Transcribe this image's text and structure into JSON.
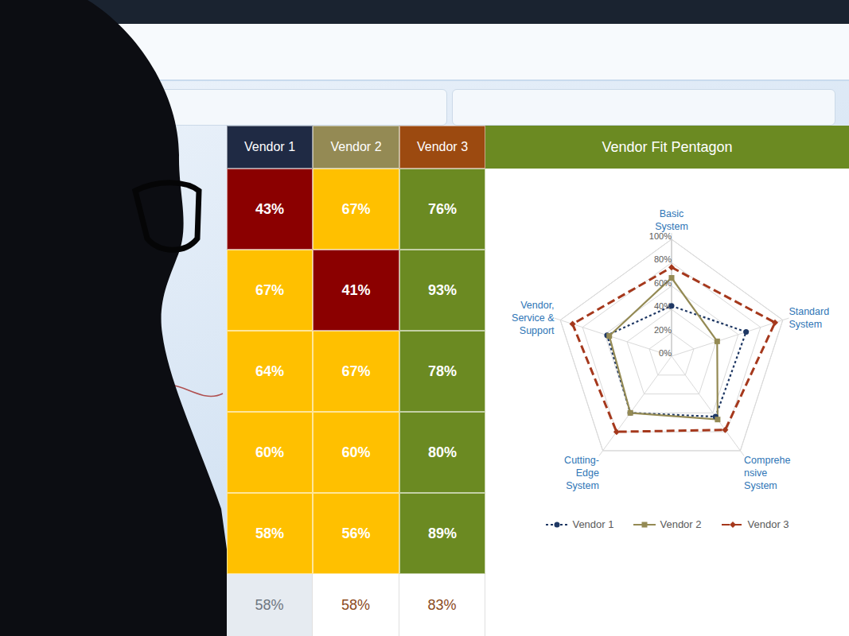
{
  "table": {
    "columns": [
      {
        "label": "Vendor 1",
        "color": "#1f2a44"
      },
      {
        "label": "Vendor 2",
        "color": "#948a54"
      },
      {
        "label": "Vendor 3",
        "color": "#9c4a10"
      }
    ],
    "rows": [
      [
        "43%",
        "67%",
        "76%"
      ],
      [
        "67%",
        "41%",
        "93%"
      ],
      [
        "64%",
        "67%",
        "78%"
      ],
      [
        "60%",
        "60%",
        "80%"
      ],
      [
        "58%",
        "56%",
        "89%"
      ]
    ],
    "cell_colors": [
      [
        "#8b0000",
        "#ffc000",
        "#6b8a22"
      ],
      [
        "#ffc000",
        "#8b0000",
        "#6b8a22"
      ],
      [
        "#ffc000",
        "#ffc000",
        "#6b8a22"
      ],
      [
        "#ffc000",
        "#ffc000",
        "#6b8a22"
      ],
      [
        "#ffc000",
        "#ffc000",
        "#6b8a22"
      ]
    ],
    "totals": [
      "58%",
      "58%",
      "83%"
    ]
  },
  "chart_data": {
    "type": "radar",
    "title": "Vendor Fit Pentagon",
    "categories": [
      "Basic System",
      "Standard System",
      "Comprehensive System",
      "Cutting-Edge System",
      "Vendor, Service & Support"
    ],
    "series": [
      {
        "name": "Vendor 1",
        "color": "#1f3864",
        "values": [
          43,
          67,
          64,
          60,
          58
        ],
        "marker": "circle",
        "line_style": "dotted"
      },
      {
        "name": "Vendor 2",
        "color": "#948a54",
        "values": [
          67,
          41,
          67,
          60,
          56
        ],
        "marker": "square",
        "line_style": "solid"
      },
      {
        "name": "Vendor 3",
        "color": "#a5381c",
        "values": [
          76,
          93,
          78,
          80,
          89
        ],
        "marker": "diamond",
        "line_style": "dashed"
      }
    ],
    "ylim": [
      0,
      100
    ],
    "yticks": [
      {
        "value": 0,
        "label": "0%"
      },
      {
        "value": 20,
        "label": "20%"
      },
      {
        "value": 40,
        "label": "40%"
      },
      {
        "value": 60,
        "label": "60%"
      },
      {
        "value": 80,
        "label": "80%"
      },
      {
        "value": 100,
        "label": "100%"
      }
    ],
    "grid": true,
    "legend": "bottom"
  }
}
